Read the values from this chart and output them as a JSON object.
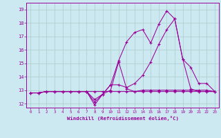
{
  "xlabel": "Windchill (Refroidissement éolien,°C)",
  "background_color": "#cce8f0",
  "grid_color": "#aacccc",
  "line_color": "#990099",
  "xlim": [
    -0.5,
    23.5
  ],
  "ylim": [
    11.7,
    19.5
  ],
  "yticks": [
    12,
    13,
    14,
    15,
    16,
    17,
    18,
    19
  ],
  "xticks": [
    0,
    1,
    2,
    3,
    4,
    5,
    6,
    7,
    8,
    9,
    10,
    11,
    12,
    13,
    14,
    15,
    16,
    17,
    18,
    19,
    20,
    21,
    22,
    23
  ],
  "line1_x": [
    0,
    1,
    2,
    3,
    4,
    5,
    6,
    7,
    8,
    9,
    10,
    11,
    12,
    13,
    14,
    15,
    16,
    17,
    18,
    19,
    20,
    21,
    22,
    23
  ],
  "line1_y": [
    12.8,
    12.8,
    12.9,
    12.9,
    12.9,
    12.9,
    12.9,
    12.9,
    12.9,
    12.9,
    12.9,
    12.9,
    12.9,
    12.9,
    12.9,
    12.9,
    12.9,
    12.9,
    12.9,
    12.9,
    12.9,
    12.9,
    12.9,
    12.9
  ],
  "line2_x": [
    0,
    1,
    2,
    3,
    4,
    5,
    6,
    7,
    8,
    9,
    10,
    11,
    12,
    13,
    14,
    15,
    16,
    17,
    18,
    19,
    20,
    21,
    22,
    23
  ],
  "line2_y": [
    12.8,
    12.8,
    12.9,
    12.9,
    12.9,
    12.9,
    12.9,
    12.9,
    12.3,
    12.7,
    13.4,
    13.4,
    13.2,
    13.5,
    14.1,
    15.1,
    16.4,
    17.5,
    18.3,
    15.3,
    14.7,
    13.5,
    13.5,
    12.9
  ],
  "line3_x": [
    0,
    1,
    2,
    3,
    4,
    5,
    6,
    7,
    8,
    9,
    10,
    11,
    12,
    13,
    14,
    15,
    16,
    17,
    18,
    19,
    20,
    21,
    22,
    23
  ],
  "line3_y": [
    12.8,
    12.8,
    12.9,
    12.9,
    12.9,
    12.9,
    12.9,
    12.9,
    12.1,
    12.7,
    13.4,
    15.2,
    16.6,
    17.3,
    17.5,
    16.5,
    17.9,
    18.9,
    18.3,
    15.3,
    13.1,
    12.9,
    12.9,
    12.9
  ],
  "line4_x": [
    0,
    1,
    2,
    3,
    4,
    5,
    6,
    7,
    8,
    9,
    10,
    11,
    12,
    13,
    14,
    15,
    16,
    17,
    18,
    19,
    20,
    21,
    22,
    23
  ],
  "line4_y": [
    12.8,
    12.8,
    12.9,
    12.9,
    12.9,
    12.9,
    12.9,
    12.9,
    11.9,
    12.7,
    13.0,
    15.1,
    13.1,
    12.9,
    13.0,
    13.0,
    13.0,
    13.0,
    13.0,
    13.0,
    13.0,
    13.0,
    13.0,
    12.9
  ]
}
